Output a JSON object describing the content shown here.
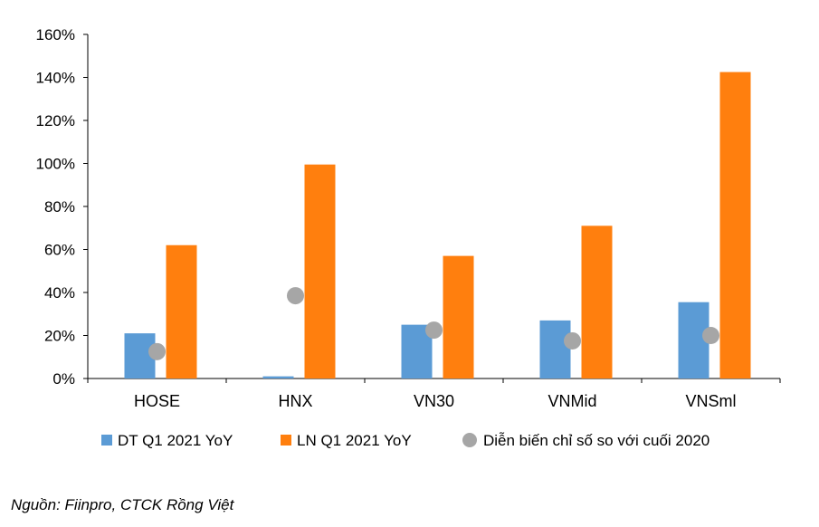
{
  "chart_data": {
    "type": "bar",
    "categories": [
      "HOSE",
      "HNX",
      "VN30",
      "VNMid",
      "VNSml"
    ],
    "series": [
      {
        "name": "DT Q1 2021 YoY",
        "kind": "bar",
        "color": "#5b9bd5",
        "values": [
          0.21,
          0.01,
          0.25,
          0.27,
          0.355
        ]
      },
      {
        "name": "LN Q1 2021 YoY",
        "kind": "bar",
        "color": "#ff7f0e",
        "values": [
          0.62,
          0.995,
          0.57,
          0.71,
          1.425
        ]
      },
      {
        "name": "Diễn biến chỉ số so với cuối 2020",
        "kind": "scatter",
        "color": "#a6a6a6",
        "values": [
          0.125,
          0.385,
          0.225,
          0.175,
          0.2
        ]
      }
    ],
    "y_ticks": [
      "0%",
      "20%",
      "40%",
      "60%",
      "80%",
      "100%",
      "120%",
      "140%",
      "160%"
    ],
    "ylim": [
      0,
      1.6
    ],
    "grid": false,
    "legend": "bottom"
  },
  "source": "Nguồn: Fiinpro, CTCK Rồng Việt"
}
